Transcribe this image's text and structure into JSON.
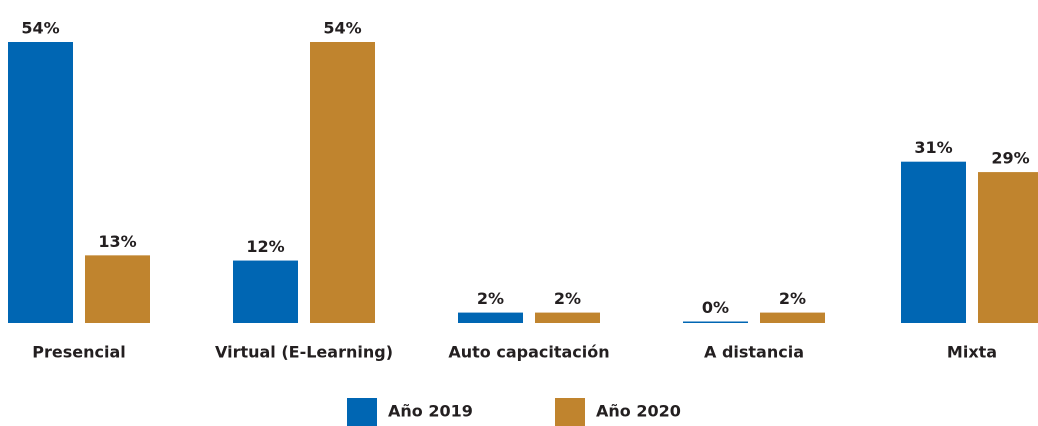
{
  "chart_data": {
    "type": "bar",
    "categories": [
      "Presencial",
      "Virtual (E-Learning)",
      "Auto capacitación",
      "A distancia",
      "Mixta"
    ],
    "series": [
      {
        "name": "Año 2019",
        "color": "#0066b3",
        "values": [
          54,
          12,
          2,
          0,
          31
        ],
        "value_labels": [
          "54%",
          "12%",
          "2%",
          "0%",
          "31%"
        ]
      },
      {
        "name": "Año 2020",
        "color": "#c0842e",
        "values": [
          13,
          54,
          2,
          2,
          29
        ],
        "value_labels": [
          "13%",
          "54%",
          "2%",
          "2%",
          "29%"
        ]
      }
    ]
  }
}
